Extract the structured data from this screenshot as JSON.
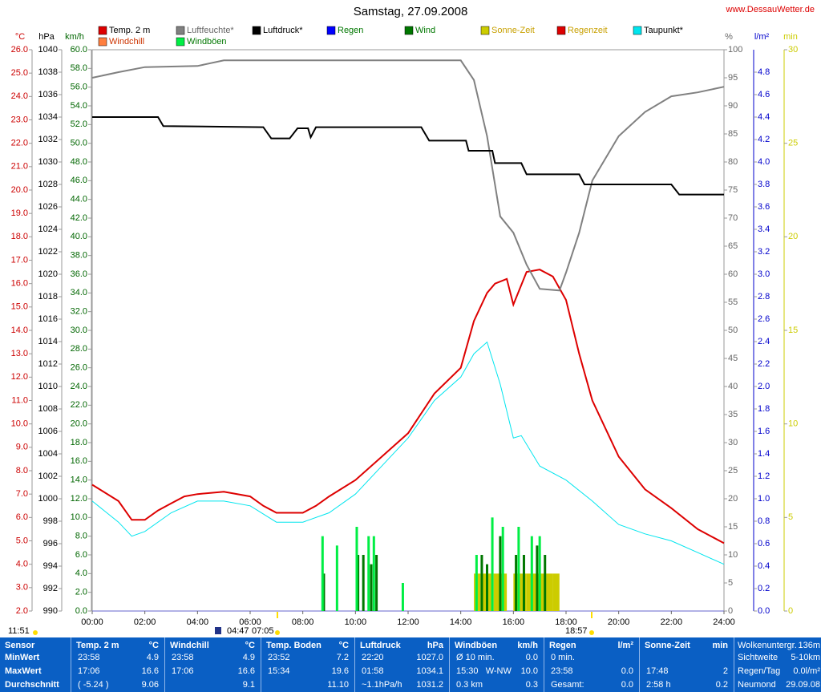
{
  "chart_data": {
    "type": "line",
    "title": "Samstag, 27.09.2008",
    "source": "www.DessauWetter.de",
    "xlim": [
      0,
      24
    ],
    "xticks": [
      {
        "value": 0,
        "label": "00:00"
      },
      {
        "value": 2,
        "label": "02:00"
      },
      {
        "value": 4,
        "label": "04:00"
      },
      {
        "value": 6,
        "label": "06:00"
      },
      {
        "value": 8,
        "label": "08:00"
      },
      {
        "value": 10,
        "label": "10:00"
      },
      {
        "value": 12,
        "label": "12:00"
      },
      {
        "value": 14,
        "label": "14:00"
      },
      {
        "value": 16,
        "label": "16:00"
      },
      {
        "value": 18,
        "label": "18:00"
      },
      {
        "value": 20,
        "label": "20:00"
      },
      {
        "value": 22,
        "label": "22:00"
      },
      {
        "value": 24,
        "label": "24:00"
      }
    ],
    "ylabel": "°C",
    "ycolor": "#cc0000",
    "ylim": [
      2,
      26
    ],
    "yticks": [
      {
        "value": 2,
        "label": "2.0"
      },
      {
        "value": 3,
        "label": "3.0"
      },
      {
        "value": 4,
        "label": "4.0"
      },
      {
        "value": 5,
        "label": "5.0"
      },
      {
        "value": 6,
        "label": "6.0"
      },
      {
        "value": 7,
        "label": "7.0"
      },
      {
        "value": 8,
        "label": "8.0"
      },
      {
        "value": 9,
        "label": "9.0"
      },
      {
        "value": 10,
        "label": "10.0"
      },
      {
        "value": 11,
        "label": "11.0"
      },
      {
        "value": 12,
        "label": "12.0"
      },
      {
        "value": 13,
        "label": "13.0"
      },
      {
        "value": 14,
        "label": "14.0"
      },
      {
        "value": 15,
        "label": "15.0"
      },
      {
        "value": 16,
        "label": "16.0"
      },
      {
        "value": 17,
        "label": "17.0"
      },
      {
        "value": 18,
        "label": "18.0"
      },
      {
        "value": 19,
        "label": "19.0"
      },
      {
        "value": 20,
        "label": "20.0"
      },
      {
        "value": 21,
        "label": "21.0"
      },
      {
        "value": 22,
        "label": "22.0"
      },
      {
        "value": 23,
        "label": "23.0"
      },
      {
        "value": 24,
        "label": "24.0"
      },
      {
        "value": 25,
        "label": "25.0"
      },
      {
        "value": 26,
        "label": "26.0"
      }
    ],
    "y2label": "hPa",
    "y2color": "#000000",
    "y2lim": [
      990,
      1040
    ],
    "y2ticks": [
      990,
      992,
      994,
      996,
      998,
      1000,
      1002,
      1004,
      1006,
      1008,
      1010,
      1012,
      1014,
      1016,
      1018,
      1020,
      1022,
      1024,
      1026,
      1028,
      1030,
      1032,
      1034,
      1036,
      1038,
      1040
    ],
    "y3label": "km/h",
    "y3color": "#006600",
    "y3lim": [
      0,
      60
    ],
    "y3ticks": [
      {
        "value": 0,
        "label": "0.0"
      },
      {
        "value": 2,
        "label": "2.0"
      },
      {
        "value": 4,
        "label": "4.0"
      },
      {
        "value": 6,
        "label": "6.0"
      },
      {
        "value": 8,
        "label": "8.0"
      },
      {
        "value": 10,
        "label": "10.0"
      },
      {
        "value": 12,
        "label": "12.0"
      },
      {
        "value": 14,
        "label": "14.0"
      },
      {
        "value": 16,
        "label": "16.0"
      },
      {
        "value": 18,
        "label": "18.0"
      },
      {
        "value": 20,
        "label": "20.0"
      },
      {
        "value": 22,
        "label": "22.0"
      },
      {
        "value": 24,
        "label": "24.0"
      },
      {
        "value": 26,
        "label": "26.0"
      },
      {
        "value": 28,
        "label": "28.0"
      },
      {
        "value": 30,
        "label": "30.0"
      },
      {
        "value": 32,
        "label": "32.0"
      },
      {
        "value": 34,
        "label": "34.0"
      },
      {
        "value": 36,
        "label": "36.0"
      },
      {
        "value": 38,
        "label": "38.0"
      },
      {
        "value": 40,
        "label": "40.0"
      },
      {
        "value": 42,
        "label": "42.0"
      },
      {
        "value": 44,
        "label": "44.0"
      },
      {
        "value": 46,
        "label": "46.0"
      },
      {
        "value": 48,
        "label": "48.0"
      },
      {
        "value": 50,
        "label": "50.0"
      },
      {
        "value": 52,
        "label": "52.0"
      },
      {
        "value": 54,
        "label": "54.0"
      },
      {
        "value": 56,
        "label": "56.0"
      },
      {
        "value": 58,
        "label": "58.0"
      },
      {
        "value": 60,
        "label": "60.0"
      }
    ],
    "y4label": "%",
    "y4color": "#666666",
    "y4lim": [
      0,
      100
    ],
    "y4ticks": [
      0,
      5,
      10,
      15,
      20,
      25,
      30,
      35,
      40,
      45,
      50,
      55,
      60,
      65,
      70,
      75,
      80,
      85,
      90,
      95,
      100
    ],
    "y5label": "l/m²",
    "y5color": "#0000cc",
    "y5lim": [
      0,
      5
    ],
    "y5ticks": [
      {
        "value": 0,
        "label": "0.0"
      },
      {
        "value": 0.2,
        "label": "0.2"
      },
      {
        "value": 0.4,
        "label": "0.4"
      },
      {
        "value": 0.6,
        "label": "0.6"
      },
      {
        "value": 0.8,
        "label": "0.8"
      },
      {
        "value": 1,
        "label": "1.0"
      },
      {
        "value": 1.2,
        "label": "1.2"
      },
      {
        "value": 1.4,
        "label": "1.4"
      },
      {
        "value": 1.6,
        "label": "1.6"
      },
      {
        "value": 1.8,
        "label": "1.8"
      },
      {
        "value": 2,
        "label": "2.0"
      },
      {
        "value": 2.2,
        "label": "2.2"
      },
      {
        "value": 2.4,
        "label": "2.4"
      },
      {
        "value": 2.6,
        "label": "2.6"
      },
      {
        "value": 2.8,
        "label": "2.8"
      },
      {
        "value": 3,
        "label": "3.0"
      },
      {
        "value": 3.2,
        "label": "3.2"
      },
      {
        "value": 3.4,
        "label": "3.4"
      },
      {
        "value": 3.6,
        "label": "3.6"
      },
      {
        "value": 3.8,
        "label": "3.8"
      },
      {
        "value": 4,
        "label": "4.0"
      },
      {
        "value": 4.2,
        "label": "4.2"
      },
      {
        "value": 4.4,
        "label": "4.4"
      },
      {
        "value": 4.6,
        "label": "4.6"
      },
      {
        "value": 4.8,
        "label": "4.8"
      }
    ],
    "y6label": "min",
    "y6color": "#cccc00",
    "y6lim": [
      0,
      30
    ],
    "y6ticks": [
      0,
      5,
      10,
      15,
      20,
      25,
      30
    ],
    "series": [
      {
        "name": "Temp. 2 m",
        "color": "#dd0000",
        "axis": "y",
        "style": "line",
        "x": [
          0,
          1,
          1.5,
          2,
          2.5,
          3,
          3.5,
          4,
          5,
          6,
          6.5,
          7,
          8,
          8.5,
          9,
          10,
          11,
          12,
          13,
          14,
          14.5,
          15,
          15.3,
          15.75,
          16,
          16.5,
          17,
          17.5,
          18,
          18.5,
          19,
          20,
          21,
          22,
          23,
          24
        ],
        "values": [
          7.4,
          6.7,
          5.9,
          5.9,
          6.3,
          6.6,
          6.9,
          7.0,
          7.1,
          6.9,
          6.5,
          6.2,
          6.2,
          6.5,
          6.9,
          7.6,
          8.6,
          9.6,
          11.3,
          12.4,
          14.4,
          15.6,
          16.0,
          16.2,
          15.1,
          16.5,
          16.6,
          16.3,
          15.3,
          13.0,
          11.0,
          8.6,
          7.2,
          6.4,
          5.5,
          4.9
        ]
      },
      {
        "name": "Luftfeuchte*",
        "color": "#808080",
        "axis": "y4",
        "style": "line",
        "x": [
          0,
          1,
          2,
          4,
          5,
          14,
          14.5,
          15,
          15.5,
          16,
          16.5,
          17,
          17.75,
          18,
          18.5,
          19,
          20,
          21,
          22,
          23,
          24
        ],
        "values": [
          95,
          96,
          96.9,
          97.1,
          98.1,
          98.1,
          94.6,
          84.6,
          70.3,
          67.4,
          61.7,
          57.4,
          57.1,
          60.3,
          67.4,
          76.7,
          84.6,
          88.9,
          91.7,
          92.4,
          93.4
        ]
      },
      {
        "name": "Luftdruck*",
        "color": "#000000",
        "axis": "y2",
        "style": "line",
        "x": [
          0,
          2.5,
          2.7,
          6.5,
          6.8,
          7.5,
          7.8,
          8.2,
          8.3,
          8.5,
          12.5,
          12.8,
          14.2,
          14.3,
          15.2,
          15.3,
          16.3,
          16.5,
          18.5,
          18.7,
          22,
          22.3,
          24
        ],
        "values": [
          1034.0,
          1034.0,
          1033.2,
          1033.1,
          1032.1,
          1032.1,
          1033.0,
          1033.0,
          1032.2,
          1033.1,
          1033.1,
          1031.9,
          1031.9,
          1031.0,
          1031.0,
          1029.9,
          1029.9,
          1028.9,
          1028.9,
          1028.0,
          1028.0,
          1027.1,
          1027.1
        ]
      },
      {
        "name": "Regen",
        "color": "#0000ff",
        "axis": "y5",
        "style": "bar",
        "x": [],
        "values": []
      },
      {
        "name": "Wind",
        "color": "#007700",
        "axis": "y3",
        "style": "bar",
        "x": [
          8.8,
          10.1,
          10.3,
          10.6,
          10.8,
          14.8,
          15.0,
          15.5,
          16.1,
          16.4,
          16.9,
          17.2
        ],
        "values": [
          4.0,
          6.0,
          6.0,
          5.0,
          6.0,
          6.0,
          5.0,
          8.0,
          6.0,
          6.0,
          7.0,
          6.0
        ]
      },
      {
        "name": "Sonne-Zeit",
        "color": "#cccc00",
        "axis": "y6",
        "style": "block",
        "x": [
          14.625,
          14.875,
          15.125,
          15.375,
          15.625,
          16.125,
          16.375,
          16.625,
          16.875,
          17.125,
          17.375,
          17.625
        ],
        "values": [
          2,
          2,
          2,
          2,
          2,
          2,
          2,
          2,
          2,
          2,
          2,
          2
        ]
      },
      {
        "name": "Regenzeit",
        "color": "#dd0000",
        "axis": "y6",
        "style": "block",
        "x": [],
        "values": []
      },
      {
        "name": "Taupunkt*",
        "color": "#00e5ee",
        "axis": "y",
        "style": "line",
        "x": [
          0,
          1,
          1.5,
          2,
          3,
          4,
          5,
          6,
          7,
          8,
          9,
          10,
          11,
          12,
          13,
          14,
          14.5,
          15,
          15.5,
          16,
          16.3,
          17,
          18,
          19,
          20,
          21,
          22,
          23,
          24
        ],
        "values": [
          6.7,
          5.8,
          5.2,
          5.4,
          6.2,
          6.7,
          6.7,
          6.5,
          5.8,
          5.8,
          6.2,
          7.0,
          8.2,
          9.4,
          11.0,
          12.0,
          13.0,
          13.5,
          11.7,
          9.4,
          9.5,
          8.2,
          7.6,
          6.7,
          5.7,
          5.3,
          5.0,
          4.5,
          4.0
        ]
      },
      {
        "name": "Windchill",
        "color": "#ff7f3f",
        "axis": "y",
        "style": "line",
        "x": [],
        "values": []
      },
      {
        "name": "Windböen",
        "color": "#00ee44",
        "axis": "y3",
        "style": "bar",
        "x": [
          8.75,
          9.3,
          10.05,
          10.5,
          10.7,
          11.8,
          14.6,
          15.2,
          15.6,
          16.2,
          16.7,
          17.0
        ],
        "values": [
          8.0,
          7.0,
          9.0,
          8.0,
          8.0,
          3.0,
          6.0,
          10.0,
          9.0,
          9.0,
          8.0,
          8.0
        ]
      }
    ],
    "annotations": [
      "11:51",
      "04:47",
      "07:05",
      "18:57"
    ]
  },
  "table": {
    "row_labels": [
      "Sensor",
      "MinWert",
      "MaxWert",
      "Durchschnitt"
    ],
    "columns": [
      {
        "title": "Temp. 2 m",
        "unit": "°C",
        "rows": [
          [
            "23:58",
            "4.9"
          ],
          [
            "17:06",
            "16.6"
          ],
          [
            "( -5.24 )",
            "9.06"
          ]
        ]
      },
      {
        "title": "Windchill",
        "unit": "°C",
        "rows": [
          [
            "23:58",
            "4.9"
          ],
          [
            "17:06",
            "16.6"
          ],
          [
            null,
            "9.1"
          ]
        ]
      },
      {
        "title": "Temp. Boden",
        "unit": "°C",
        "rows": [
          [
            "23:52",
            "7.2"
          ],
          [
            "15:34",
            "19.6"
          ],
          [
            null,
            "11.10"
          ]
        ]
      },
      {
        "title": "Luftdruck",
        "unit": "hPa",
        "rows": [
          [
            "22:20",
            "1027.0"
          ],
          [
            "01:58",
            "1034.1"
          ],
          [
            "~1.1hPa/h",
            "1031.2"
          ]
        ]
      },
      {
        "title": "Windböen",
        "unit": "km/h",
        "rows": [
          [
            "Ø 10 min.",
            "0.0"
          ],
          [
            "15:30   W-NW",
            "10.0"
          ],
          [
            "0.3 km",
            "0.3"
          ]
        ]
      },
      {
        "title": "Regen",
        "unit": "l/m²",
        "rows": [
          [
            "0 min.",
            null
          ],
          [
            "23:58",
            "0.0"
          ],
          [
            "Gesamt:",
            "0.0"
          ]
        ]
      },
      {
        "title": "Sonne-Zeit",
        "unit": "min",
        "rows": [
          [
            null,
            null
          ],
          [
            "17:48",
            "2"
          ],
          [
            "2:58 h",
            "0.2"
          ]
        ]
      }
    ],
    "info": [
      [
        "Wolkenuntergr.",
        "136m"
      ],
      [
        "Sichtweite",
        "5-10km"
      ],
      [
        "Regen/Tag",
        "0.0l/m²"
      ],
      [
        "Neumond",
        "29.09.08"
      ]
    ]
  }
}
